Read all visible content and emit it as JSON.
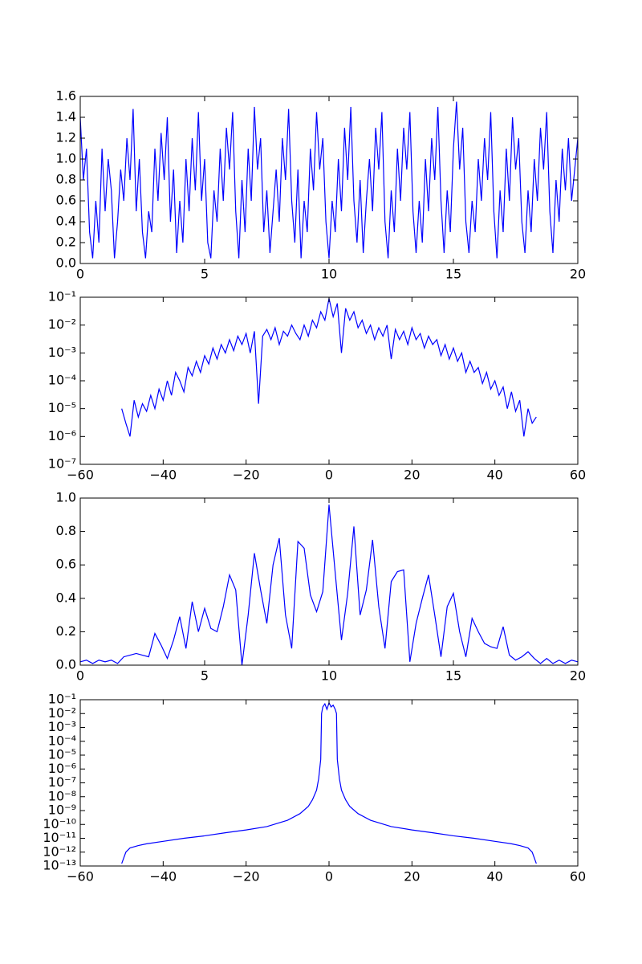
{
  "chart_data": [
    {
      "type": "line",
      "color": "#0000ff",
      "x": [
        0,
        0.125,
        0.25,
        0.375,
        0.5,
        0.625,
        0.75,
        0.875,
        1,
        1.125,
        1.25,
        1.375,
        1.5,
        1.625,
        1.75,
        1.875,
        2,
        2.125,
        2.25,
        2.375,
        2.5,
        2.625,
        2.75,
        2.875,
        3,
        3.125,
        3.25,
        3.375,
        3.5,
        3.625,
        3.75,
        3.875,
        4,
        4.125,
        4.25,
        4.375,
        4.5,
        4.625,
        4.75,
        4.875,
        5,
        5.125,
        5.25,
        5.375,
        5.5,
        5.625,
        5.75,
        5.875,
        6,
        6.125,
        6.25,
        6.375,
        6.5,
        6.625,
        6.75,
        6.875,
        7,
        7.125,
        7.25,
        7.375,
        7.5,
        7.625,
        7.75,
        7.875,
        8,
        8.125,
        8.25,
        8.375,
        8.5,
        8.625,
        8.75,
        8.875,
        9,
        9.125,
        9.25,
        9.375,
        9.5,
        9.625,
        9.75,
        9.875,
        10,
        10.125,
        10.25,
        10.375,
        10.5,
        10.625,
        10.75,
        10.875,
        11,
        11.125,
        11.25,
        11.375,
        11.5,
        11.625,
        11.75,
        11.875,
        12,
        12.125,
        12.25,
        12.375,
        12.5,
        12.625,
        12.75,
        12.875,
        13,
        13.125,
        13.25,
        13.375,
        13.5,
        13.625,
        13.75,
        13.875,
        14,
        14.125,
        14.25,
        14.375,
        14.5,
        14.625,
        14.75,
        14.875,
        15,
        15.125,
        15.25,
        15.375,
        15.5,
        15.625,
        15.75,
        15.875,
        16,
        16.125,
        16.25,
        16.375,
        16.5,
        16.625,
        16.75,
        16.875,
        17,
        17.125,
        17.25,
        17.375,
        17.5,
        17.625,
        17.75,
        17.875,
        18,
        18.125,
        18.25,
        18.375,
        18.5,
        18.625,
        18.75,
        18.875,
        19,
        19.125,
        19.25,
        19.375,
        19.5,
        19.625,
        19.75,
        19.875,
        20
      ],
      "values": [
        1.4,
        0.8,
        1.1,
        0.3,
        0.05,
        0.6,
        0.2,
        1.1,
        0.5,
        1.0,
        0.7,
        0.05,
        0.4,
        0.9,
        0.6,
        1.2,
        0.8,
        1.48,
        0.5,
        1.0,
        0.3,
        0.05,
        0.5,
        0.3,
        1.1,
        0.6,
        1.25,
        0.8,
        1.4,
        0.4,
        0.9,
        0.1,
        0.6,
        0.2,
        1.0,
        0.5,
        1.2,
        0.7,
        1.45,
        0.6,
        1.0,
        0.2,
        0.05,
        0.7,
        0.4,
        1.1,
        0.6,
        1.3,
        0.9,
        1.45,
        0.5,
        0.05,
        0.8,
        0.3,
        1.1,
        0.6,
        1.5,
        0.9,
        1.2,
        0.3,
        0.7,
        0.1,
        0.5,
        0.9,
        0.4,
        1.2,
        0.8,
        1.48,
        0.6,
        0.2,
        0.9,
        0.05,
        0.6,
        0.3,
        1.1,
        0.7,
        1.45,
        0.9,
        1.2,
        0.4,
        0.05,
        0.6,
        0.3,
        1.0,
        0.5,
        1.3,
        0.8,
        1.5,
        0.6,
        0.2,
        0.8,
        0.1,
        0.6,
        1.0,
        0.5,
        1.3,
        0.9,
        1.45,
        0.4,
        0.05,
        0.7,
        0.3,
        1.1,
        0.6,
        1.3,
        0.9,
        1.45,
        0.5,
        0.1,
        0.6,
        0.2,
        1.0,
        0.5,
        1.2,
        0.8,
        1.5,
        0.6,
        0.1,
        0.7,
        0.3,
        1.1,
        1.55,
        0.9,
        1.3,
        0.4,
        0.1,
        0.6,
        0.3,
        1.0,
        0.6,
        1.2,
        0.8,
        1.45,
        0.5,
        0.05,
        0.7,
        0.3,
        1.1,
        0.6,
        1.4,
        0.9,
        1.2,
        0.4,
        0.1,
        0.7,
        0.3,
        1.0,
        0.6,
        1.3,
        0.9,
        1.45,
        0.5,
        0.1,
        0.8,
        0.4,
        1.1,
        0.7,
        1.2,
        0.6,
        0.9,
        1.2
      ],
      "xlim": [
        0,
        20
      ],
      "ylim": [
        0,
        1.6
      ],
      "log_y": false,
      "xticks": [
        0,
        5,
        10,
        15,
        20
      ],
      "yticks": [
        {
          "value": 0,
          "label": "0.0"
        },
        0.2,
        0.4,
        0.6,
        0.8,
        {
          "value": 1,
          "label": "1.0"
        },
        1.2,
        1.4,
        1.6
      ]
    },
    {
      "type": "line",
      "color": "#0000ff",
      "x": [
        -50,
        -49,
        -48,
        -47,
        -46,
        -45,
        -44,
        -43,
        -42,
        -41,
        -40,
        -39,
        -38,
        -37,
        -36,
        -35,
        -34,
        -33,
        -32,
        -31,
        -30,
        -29,
        -28,
        -27,
        -26,
        -25,
        -24,
        -23,
        -22,
        -21,
        -20,
        -19,
        -18,
        -17,
        -16,
        -15,
        -14,
        -13,
        -12,
        -11,
        -10,
        -9,
        -8,
        -7,
        -6,
        -5,
        -4,
        -3,
        -2,
        -1,
        0,
        1,
        2,
        3,
        4,
        5,
        6,
        7,
        8,
        9,
        10,
        11,
        12,
        13,
        14,
        15,
        16,
        17,
        18,
        19,
        20,
        21,
        22,
        23,
        24,
        25,
        26,
        27,
        28,
        29,
        30,
        31,
        32,
        33,
        34,
        35,
        36,
        37,
        38,
        39,
        40,
        41,
        42,
        43,
        44,
        45,
        46,
        47,
        48,
        49,
        50
      ],
      "values": [
        1e-05,
        3e-06,
        1e-06,
        2e-05,
        5e-06,
        1.5e-05,
        8e-06,
        3e-05,
        1e-05,
        5e-05,
        2e-05,
        0.0001,
        3e-05,
        0.0002,
        0.0001,
        4e-05,
        0.0003,
        0.00015,
        0.0005,
        0.0002,
        0.0008,
        0.0004,
        0.0015,
        0.0006,
        0.002,
        0.001,
        0.003,
        0.0012,
        0.004,
        0.002,
        0.005,
        0.001,
        0.006,
        1.5e-05,
        0.004,
        0.007,
        0.003,
        0.008,
        0.002,
        0.006,
        0.004,
        0.01,
        0.005,
        0.003,
        0.01,
        0.004,
        0.015,
        0.008,
        0.03,
        0.015,
        0.09,
        0.02,
        0.06,
        0.001,
        0.04,
        0.015,
        0.03,
        0.008,
        0.015,
        0.005,
        0.01,
        0.003,
        0.008,
        0.004,
        0.01,
        0.0006,
        0.007,
        0.003,
        0.006,
        0.002,
        0.008,
        0.003,
        0.005,
        0.0015,
        0.004,
        0.002,
        0.003,
        0.0008,
        0.002,
        0.0006,
        0.0015,
        0.0005,
        0.001,
        0.0002,
        0.0005,
        0.0002,
        0.0003,
        8e-05,
        0.0002,
        5e-05,
        0.0001,
        3e-05,
        6e-05,
        1e-05,
        4e-05,
        8e-06,
        2e-05,
        1e-06,
        1e-05,
        3e-06,
        5e-06
      ],
      "xlim": [
        -60,
        60
      ],
      "ylim": [
        1e-07,
        0.1
      ],
      "log_y": true,
      "xticks": [
        {
          "value": -60,
          "label": "−60"
        },
        {
          "value": -40,
          "label": "−40"
        },
        {
          "value": -20,
          "label": "−20"
        },
        0,
        20,
        40,
        60
      ],
      "yticks": [
        {
          "value": 1e-07,
          "label": "10⁻⁷"
        },
        {
          "value": 1e-06,
          "label": "10⁻⁶"
        },
        {
          "value": 1e-05,
          "label": "10⁻⁵"
        },
        {
          "value": 0.0001,
          "label": "10⁻⁴"
        },
        {
          "value": 0.001,
          "label": "10⁻³"
        },
        {
          "value": 0.01,
          "label": "10⁻²"
        },
        {
          "value": 0.1,
          "label": "10⁻¹"
        }
      ]
    },
    {
      "type": "line",
      "color": "#0000ff",
      "x": [
        0,
        0.25,
        0.5,
        0.75,
        1,
        1.25,
        1.5,
        1.75,
        2,
        2.25,
        2.5,
        2.75,
        3,
        3.25,
        3.5,
        3.75,
        4,
        4.25,
        4.5,
        4.75,
        5,
        5.25,
        5.5,
        5.75,
        6,
        6.25,
        6.5,
        6.75,
        7,
        7.25,
        7.5,
        7.75,
        8,
        8.25,
        8.5,
        8.75,
        9,
        9.25,
        9.5,
        9.75,
        10,
        10.25,
        10.5,
        10.75,
        11,
        11.25,
        11.5,
        11.75,
        12,
        12.25,
        12.5,
        12.75,
        13,
        13.25,
        13.5,
        13.75,
        14,
        14.25,
        14.5,
        14.75,
        15,
        15.25,
        15.5,
        15.75,
        16,
        16.25,
        16.5,
        16.75,
        17,
        17.25,
        17.5,
        17.75,
        18,
        18.25,
        18.5,
        18.75,
        19,
        19.25,
        19.5,
        19.75,
        20
      ],
      "values": [
        0.02,
        0.03,
        0.01,
        0.03,
        0.02,
        0.03,
        0.01,
        0.05,
        0.06,
        0.07,
        0.06,
        0.05,
        0.19,
        0.12,
        0.04,
        0.15,
        0.29,
        0.1,
        0.38,
        0.2,
        0.34,
        0.22,
        0.2,
        0.35,
        0.54,
        0.45,
        0.0,
        0.3,
        0.67,
        0.45,
        0.25,
        0.6,
        0.76,
        0.3,
        0.1,
        0.74,
        0.7,
        0.42,
        0.32,
        0.44,
        0.96,
        0.55,
        0.15,
        0.43,
        0.83,
        0.3,
        0.45,
        0.75,
        0.35,
        0.1,
        0.5,
        0.56,
        0.57,
        0.02,
        0.25,
        0.4,
        0.54,
        0.3,
        0.05,
        0.35,
        0.43,
        0.2,
        0.05,
        0.28,
        0.2,
        0.13,
        0.11,
        0.1,
        0.23,
        0.06,
        0.03,
        0.05,
        0.08,
        0.04,
        0.01,
        0.04,
        0.01,
        0.03,
        0.01,
        0.03,
        0.02
      ],
      "xlim": [
        0,
        20
      ],
      "ylim": [
        0,
        1
      ],
      "log_y": false,
      "xticks": [
        0,
        5,
        10,
        15,
        20
      ],
      "yticks": [
        {
          "value": 0,
          "label": "0.0"
        },
        0.2,
        0.4,
        0.6,
        0.8,
        {
          "value": 1,
          "label": "1.0"
        }
      ]
    },
    {
      "type": "line",
      "color": "#0000ff",
      "x": [
        -50,
        -49,
        -48,
        -46,
        -44,
        -40,
        -35,
        -30,
        -25,
        -20,
        -15,
        -10,
        -7,
        -5,
        -4,
        -3,
        -2.5,
        -2,
        -1.8,
        -1.5,
        -1,
        -0.5,
        0,
        0.5,
        1,
        1.5,
        1.8,
        2,
        2.5,
        3,
        4,
        5,
        7,
        10,
        15,
        20,
        25,
        30,
        35,
        40,
        44,
        46,
        48,
        49,
        50
      ],
      "values": [
        1.5e-13,
        1e-12,
        2e-12,
        3e-12,
        4e-12,
        6e-12,
        1e-11,
        1.5e-11,
        2.5e-11,
        4e-11,
        7e-11,
        2e-10,
        6e-10,
        2e-09,
        6e-09,
        3e-08,
        2e-07,
        5e-06,
        0.01,
        0.03,
        0.05,
        0.02,
        0.06,
        0.03,
        0.04,
        0.02,
        0.01,
        5e-06,
        2e-07,
        3e-08,
        6e-09,
        2e-09,
        6e-10,
        2e-10,
        7e-11,
        4e-11,
        2.5e-11,
        1.5e-11,
        1e-11,
        6e-12,
        4e-12,
        3e-12,
        2e-12,
        1e-12,
        1.5e-13
      ],
      "xlim": [
        -60,
        60
      ],
      "ylim": [
        1e-13,
        0.1
      ],
      "log_y": true,
      "xticks": [
        {
          "value": -60,
          "label": "−60"
        },
        {
          "value": -40,
          "label": "−40"
        },
        {
          "value": -20,
          "label": "−20"
        },
        0,
        20,
        40,
        60
      ],
      "yticks": [
        {
          "value": 1e-13,
          "label": "10⁻¹³"
        },
        {
          "value": 1e-12,
          "label": "10⁻¹²"
        },
        {
          "value": 1e-11,
          "label": "10⁻¹¹"
        },
        {
          "value": 1e-10,
          "label": "10⁻¹⁰"
        },
        {
          "value": 1e-09,
          "label": "10⁻⁹"
        },
        {
          "value": 1e-08,
          "label": "10⁻⁸"
        },
        {
          "value": 1e-07,
          "label": "10⁻⁷"
        },
        {
          "value": 1e-06,
          "label": "10⁻⁶"
        },
        {
          "value": 1e-05,
          "label": "10⁻⁵"
        },
        {
          "value": 0.0001,
          "label": "10⁻⁴"
        },
        {
          "value": 0.001,
          "label": "10⁻³"
        },
        {
          "value": 0.01,
          "label": "10⁻²"
        },
        {
          "value": 0.1,
          "label": "10⁻¹"
        }
      ]
    }
  ]
}
